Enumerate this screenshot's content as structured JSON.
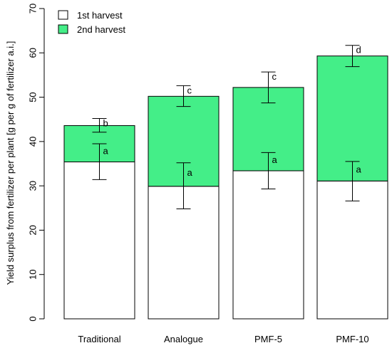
{
  "chart_data": {
    "type": "bar",
    "stacked": true,
    "categories": [
      "Traditional",
      "Analogue",
      "PMF-5",
      "PMF-10"
    ],
    "ylabel": "Yield surplus from fertilizer per plant [g per g of fertilizer a.i.]",
    "xlabel": "",
    "ylim": [
      0,
      70
    ],
    "yticks": [
      0,
      10,
      20,
      30,
      40,
      50,
      60,
      70
    ],
    "grid": false,
    "legend_position": "top-left",
    "series": [
      {
        "name": "1st harvest",
        "color": "#ffffff",
        "values": [
          35.4,
          29.9,
          33.4,
          31.1
        ],
        "error_low": [
          31.4,
          24.8,
          29.3,
          26.6
        ],
        "error_high": [
          39.5,
          35.2,
          37.5,
          35.5
        ],
        "letters": [
          "a",
          "a",
          "a",
          "a"
        ]
      },
      {
        "name": "2nd harvest",
        "color": "#44ee88",
        "values": [
          8.2,
          20.3,
          18.8,
          28.2
        ],
        "error_low": [
          42.1,
          47.9,
          48.7,
          56.9
        ],
        "error_high": [
          45.2,
          52.6,
          55.7,
          61.7
        ],
        "letters": [
          "b",
          "c",
          "c",
          "d"
        ]
      }
    ]
  }
}
